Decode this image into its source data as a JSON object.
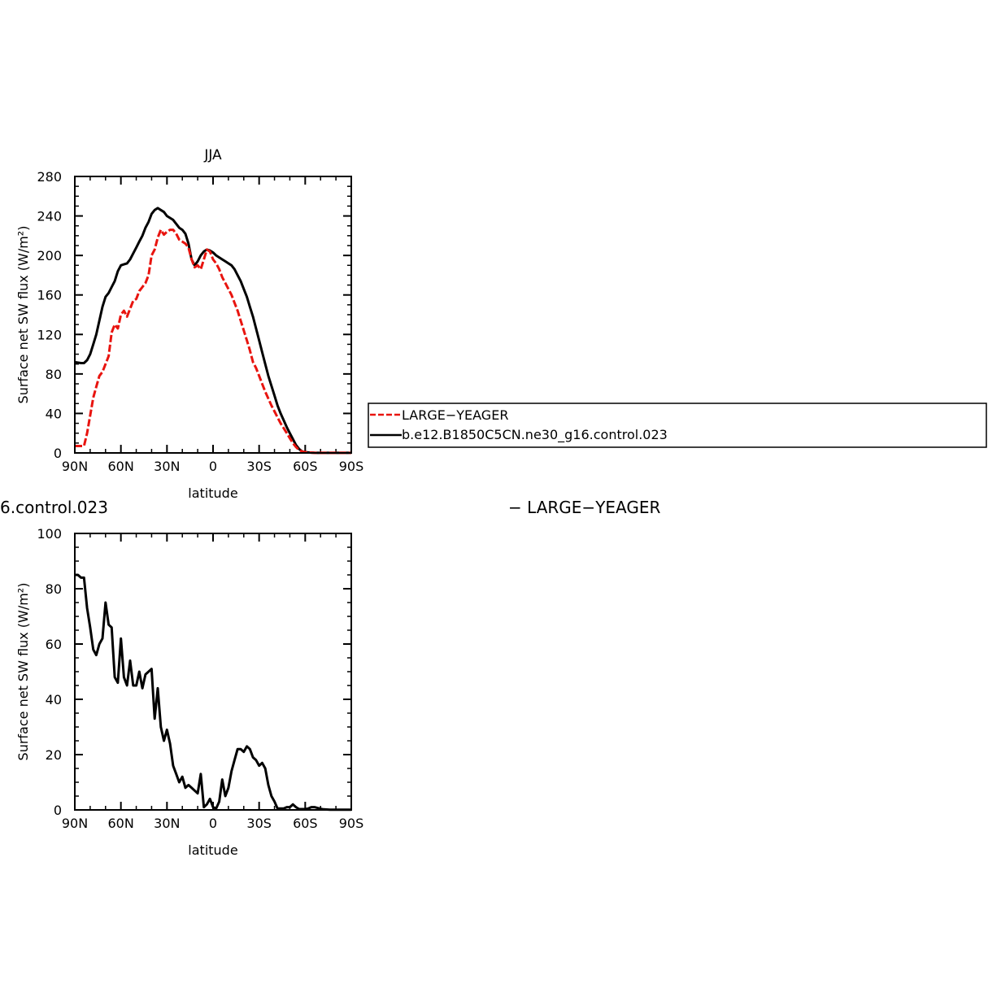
{
  "chart_data": [
    {
      "type": "line",
      "title": "JJA",
      "xlabel": "latitude",
      "ylabel": "Surface net SW flux (W/m²)",
      "xlim": [
        -90,
        90
      ],
      "ylim": [
        0,
        280
      ],
      "x_ticks": [
        -90,
        -60,
        -30,
        0,
        30,
        60,
        90
      ],
      "x_tick_labels": [
        "90N",
        "60N",
        "30N",
        "0",
        "30S",
        "60S",
        "90S"
      ],
      "y_ticks": [
        0,
        40,
        80,
        120,
        160,
        200,
        240,
        280
      ],
      "y_tick_labels": [
        "0",
        "40",
        "80",
        "120",
        "160",
        "200",
        "240",
        "280"
      ],
      "legend": {
        "placement": "right",
        "entries": [
          "LARGE−YEAGER",
          "b.e12.B1850C5CN.ne30_g16.control.023"
        ]
      },
      "series": [
        {
          "name": "LARGE−YEAGER",
          "color": "#e8140f",
          "dash": "dashed",
          "x": [
            -90,
            -84,
            -82,
            -80,
            -78,
            -76,
            -74,
            -72,
            -70,
            -68,
            -66,
            -64,
            -62,
            -60,
            -58,
            -56,
            -54,
            -52,
            -50,
            -48,
            -46,
            -44,
            -42,
            -40,
            -38,
            -36,
            -34,
            -32,
            -30,
            -28,
            -26,
            -24,
            -22,
            -20,
            -18,
            -16,
            -14,
            -12,
            -10,
            -8,
            -6,
            -4,
            -2,
            0,
            2,
            4,
            6,
            8,
            10,
            12,
            14,
            16,
            18,
            20,
            22,
            24,
            26,
            28,
            30,
            32,
            34,
            36,
            38,
            40,
            42,
            44,
            46,
            48,
            50,
            52,
            54,
            56,
            58,
            60,
            62,
            64,
            66,
            68,
            70,
            74,
            78,
            82,
            86,
            90
          ],
          "y": [
            7,
            7,
            20,
            38,
            56,
            67,
            78,
            82,
            90,
            98,
            122,
            130,
            126,
            140,
            144,
            138,
            146,
            154,
            156,
            164,
            168,
            172,
            180,
            200,
            206,
            218,
            226,
            221,
            224,
            226,
            226,
            222,
            216,
            214,
            212,
            208,
            196,
            188,
            190,
            186,
            196,
            206,
            204,
            196,
            192,
            186,
            178,
            172,
            166,
            160,
            152,
            144,
            134,
            124,
            114,
            104,
            92,
            86,
            78,
            70,
            62,
            55,
            48,
            42,
            36,
            30,
            25,
            20,
            15,
            10,
            6,
            3,
            1.5,
            0.8,
            0.5,
            0.3,
            0.1,
            0.1,
            0.1,
            0.1,
            0.1,
            0.1,
            0.1,
            0.1
          ]
        },
        {
          "name": "b.e12.B1850C5CN.ne30_g16.control.023",
          "color": "#000000",
          "dash": "solid",
          "x": [
            -90,
            -86,
            -84,
            -82,
            -80,
            -78,
            -76,
            -74,
            -72,
            -70,
            -68,
            -66,
            -64,
            -62,
            -60,
            -58,
            -56,
            -54,
            -52,
            -50,
            -48,
            -46,
            -44,
            -42,
            -40,
            -38,
            -36,
            -34,
            -32,
            -30,
            -28,
            -26,
            -24,
            -22,
            -20,
            -18,
            -16,
            -14,
            -12,
            -10,
            -8,
            -6,
            -4,
            -2,
            0,
            2,
            4,
            6,
            8,
            10,
            12,
            14,
            16,
            18,
            20,
            22,
            24,
            26,
            28,
            30,
            32,
            34,
            36,
            38,
            40,
            42,
            44,
            46,
            48,
            50,
            52,
            54,
            56,
            58,
            60,
            62,
            64,
            66,
            68,
            70,
            74,
            78,
            82,
            86,
            90
          ],
          "y": [
            92,
            91,
            91,
            94,
            100,
            110,
            120,
            134,
            148,
            158,
            162,
            168,
            174,
            184,
            190,
            191,
            192,
            196,
            202,
            208,
            214,
            220,
            228,
            234,
            242,
            246,
            248,
            246,
            244,
            240,
            238,
            236,
            232,
            228,
            226,
            222,
            212,
            196,
            190,
            194,
            200,
            204,
            206,
            205,
            203,
            200,
            198,
            196,
            194,
            192,
            190,
            186,
            180,
            174,
            166,
            158,
            148,
            138,
            126,
            114,
            102,
            90,
            78,
            68,
            58,
            48,
            40,
            33,
            26,
            20,
            14,
            8,
            4,
            1.5,
            0.8,
            0.5,
            0.3,
            0.2,
            0.1,
            0.1,
            0.1,
            0.1,
            0.1,
            0.1,
            0.1
          ]
        }
      ]
    },
    {
      "type": "line",
      "title": "",
      "xlabel": "latitude",
      "ylabel": "Surface net SW flux (W/m²)",
      "xlim": [
        -90,
        90
      ],
      "ylim": [
        0,
        100
      ],
      "x_ticks": [
        -90,
        -60,
        -30,
        0,
        30,
        60,
        90
      ],
      "x_tick_labels": [
        "90N",
        "60N",
        "30N",
        "0",
        "30S",
        "60S",
        "90S"
      ],
      "y_ticks": [
        0,
        20,
        40,
        60,
        80,
        100
      ],
      "y_tick_labels": [
        "0",
        "20",
        "40",
        "60",
        "80",
        "100"
      ],
      "series": [
        {
          "color": "#000000",
          "dash": "solid",
          "x": [
            -90,
            -88,
            -86,
            -84,
            -82,
            -80,
            -78,
            -76,
            -74,
            -72,
            -70,
            -68,
            -66,
            -64,
            -62,
            -60,
            -58,
            -56,
            -54,
            -52,
            -50,
            -48,
            -46,
            -44,
            -42,
            -40,
            -38,
            -36,
            -34,
            -32,
            -30,
            -28,
            -26,
            -24,
            -22,
            -20,
            -18,
            -16,
            -14,
            -12,
            -10,
            -8,
            -6,
            -4,
            -2,
            0,
            2,
            4,
            6,
            8,
            10,
            12,
            14,
            16,
            18,
            20,
            22,
            24,
            26,
            28,
            30,
            32,
            34,
            36,
            38,
            40,
            42,
            44,
            46,
            48,
            50,
            52,
            54,
            56,
            58,
            60,
            62,
            64,
            66,
            68,
            70,
            72,
            76,
            80,
            85,
            90
          ],
          "y": [
            85,
            85,
            84,
            84,
            73,
            66,
            58,
            56,
            60,
            62,
            75,
            67,
            66,
            48,
            46,
            62,
            48,
            45,
            54,
            45,
            45,
            50,
            44,
            49,
            50,
            51,
            33,
            44,
            30,
            25,
            29,
            24,
            16,
            13,
            10,
            12,
            8,
            9,
            8,
            7,
            6,
            13,
            1,
            2,
            4,
            1,
            0.5,
            3,
            11,
            5,
            8,
            14,
            18,
            22,
            22,
            21,
            23,
            22,
            19,
            18,
            16,
            17,
            15,
            9,
            5,
            3,
            0.5,
            0.5,
            0.5,
            1,
            1,
            2,
            1,
            0.3,
            0.3,
            0.3,
            0.5,
            1,
            1,
            0.7,
            0.4,
            0.2,
            0.1,
            0.1,
            0.1,
            0.1
          ]
        }
      ]
    }
  ],
  "overflow_labels": {
    "left_clipped": "6.control.023",
    "right_clipped": "− LARGE−YEAGER"
  }
}
